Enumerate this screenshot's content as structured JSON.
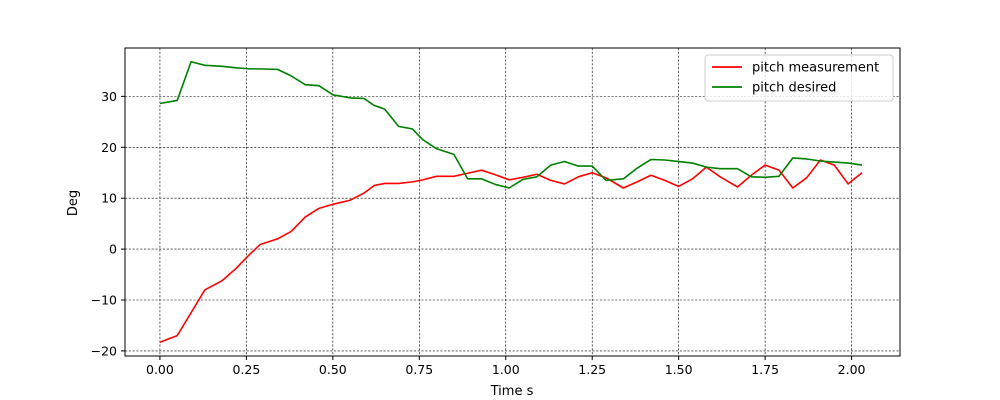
{
  "chart_data": {
    "type": "line",
    "title": "",
    "xlabel": "Time s",
    "ylabel": "Deg",
    "xlim": [
      -0.101,
      2.14
    ],
    "ylim": [
      -21,
      39.5
    ],
    "xticks": [
      0.0,
      0.25,
      0.5,
      0.75,
      1.0,
      1.25,
      1.5,
      1.75,
      2.0
    ],
    "xtick_labels": [
      "0.00",
      "0.25",
      "0.50",
      "0.75",
      "1.00",
      "1.25",
      "1.50",
      "1.75",
      "2.00"
    ],
    "yticks": [
      -20,
      -10,
      0,
      10,
      20,
      30
    ],
    "ytick_labels": [
      "−20",
      "−10",
      "0",
      "10",
      "20",
      "30"
    ],
    "grid": true,
    "legend_position": "top-right",
    "series": [
      {
        "name": "pitch measurement",
        "color": "#ff0000",
        "x": [
          0.0,
          0.05,
          0.09,
          0.13,
          0.18,
          0.22,
          0.26,
          0.29,
          0.34,
          0.38,
          0.42,
          0.46,
          0.5,
          0.55,
          0.59,
          0.62,
          0.65,
          0.69,
          0.73,
          0.76,
          0.8,
          0.85,
          0.89,
          0.93,
          0.97,
          1.01,
          1.05,
          1.09,
          1.13,
          1.17,
          1.21,
          1.25,
          1.29,
          1.34,
          1.38,
          1.42,
          1.46,
          1.5,
          1.54,
          1.58,
          1.62,
          1.67,
          1.71,
          1.75,
          1.79,
          1.83,
          1.87,
          1.91,
          1.95,
          1.99,
          2.03
        ],
        "y": [
          -18.3,
          -17.0,
          -12.5,
          -8.0,
          -6.2,
          -3.8,
          -1.0,
          0.9,
          2.0,
          3.5,
          6.3,
          8.0,
          8.8,
          9.6,
          11.0,
          12.5,
          12.9,
          12.9,
          13.2,
          13.6,
          14.3,
          14.3,
          14.9,
          15.5,
          14.6,
          13.6,
          14.1,
          14.7,
          13.5,
          12.8,
          14.2,
          15.0,
          14.0,
          12.0,
          13.2,
          14.5,
          13.5,
          12.3,
          13.8,
          16.1,
          14.2,
          12.2,
          14.5,
          16.5,
          15.5,
          12.0,
          14.0,
          17.5,
          16.5,
          12.8,
          15.0
        ]
      },
      {
        "name": "pitch desired",
        "color": "#008000",
        "x": [
          0.0,
          0.05,
          0.09,
          0.13,
          0.18,
          0.22,
          0.26,
          0.29,
          0.34,
          0.38,
          0.42,
          0.46,
          0.5,
          0.55,
          0.59,
          0.62,
          0.65,
          0.69,
          0.73,
          0.76,
          0.8,
          0.85,
          0.89,
          0.93,
          0.97,
          1.01,
          1.05,
          1.09,
          1.13,
          1.17,
          1.21,
          1.25,
          1.29,
          1.34,
          1.38,
          1.42,
          1.46,
          1.5,
          1.54,
          1.58,
          1.62,
          1.67,
          1.71,
          1.75,
          1.79,
          1.83,
          1.87,
          1.91,
          1.95,
          1.99,
          2.03
        ],
        "y": [
          28.6,
          29.2,
          36.8,
          36.1,
          35.9,
          35.6,
          35.4,
          35.4,
          35.3,
          34.0,
          32.3,
          32.1,
          30.3,
          29.7,
          29.6,
          28.2,
          27.5,
          24.1,
          23.6,
          21.5,
          19.7,
          18.6,
          13.8,
          13.8,
          12.7,
          12.0,
          13.7,
          14.2,
          16.5,
          17.2,
          16.3,
          16.3,
          13.5,
          13.8,
          15.9,
          17.6,
          17.5,
          17.2,
          16.9,
          16.1,
          15.8,
          15.8,
          14.2,
          14.1,
          14.3,
          17.9,
          17.7,
          17.3,
          17.1,
          16.9,
          16.5
        ]
      }
    ]
  }
}
